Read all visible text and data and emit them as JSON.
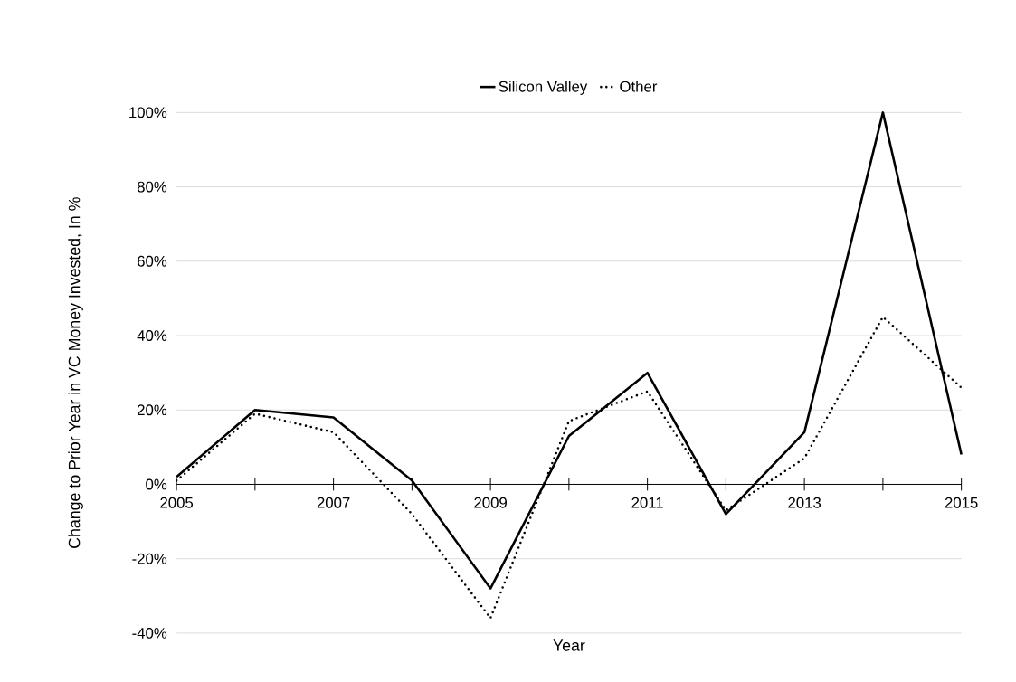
{
  "chart_data": {
    "type": "line",
    "xlabel": "Year",
    "ylabel": "Change to Prior Year in VC Money Invested, In %",
    "x": [
      2005,
      2006,
      2007,
      2008,
      2009,
      2010,
      2011,
      2012,
      2013,
      2014,
      2015
    ],
    "series": [
      {
        "name": "Silicon Valley",
        "color": "#000000",
        "line_style": "solid",
        "values": [
          2,
          20,
          18,
          1,
          -28,
          13,
          30,
          -8,
          14,
          100,
          8
        ]
      },
      {
        "name": "Other",
        "color": "#000000",
        "line_style": "dotted",
        "values": [
          1,
          19,
          14,
          -8,
          -36,
          17,
          25,
          -7,
          7,
          45,
          26
        ]
      }
    ],
    "xlim": [
      2005,
      2015
    ],
    "xticks": [
      2005,
      {
        "value": 2006,
        "label": null
      },
      2007,
      {
        "value": 2008,
        "label": null
      },
      2009,
      {
        "value": 2010,
        "label": null
      },
      2011,
      {
        "value": 2012,
        "label": null
      },
      2013,
      {
        "value": 2014,
        "label": null
      },
      2015
    ],
    "ylim": [
      -40,
      100
    ],
    "yticks": [
      {
        "value": -40,
        "label": "-40%"
      },
      {
        "value": -20,
        "label": "-20%"
      },
      {
        "value": 0,
        "label": "0%"
      },
      {
        "value": 20,
        "label": "20%"
      },
      {
        "value": 40,
        "label": "40%"
      },
      {
        "value": 60,
        "label": "60%"
      },
      {
        "value": 80,
        "label": "80%"
      },
      {
        "value": 100,
        "label": "100%"
      }
    ],
    "grid": "y",
    "legend": "top",
    "marker": "none"
  }
}
